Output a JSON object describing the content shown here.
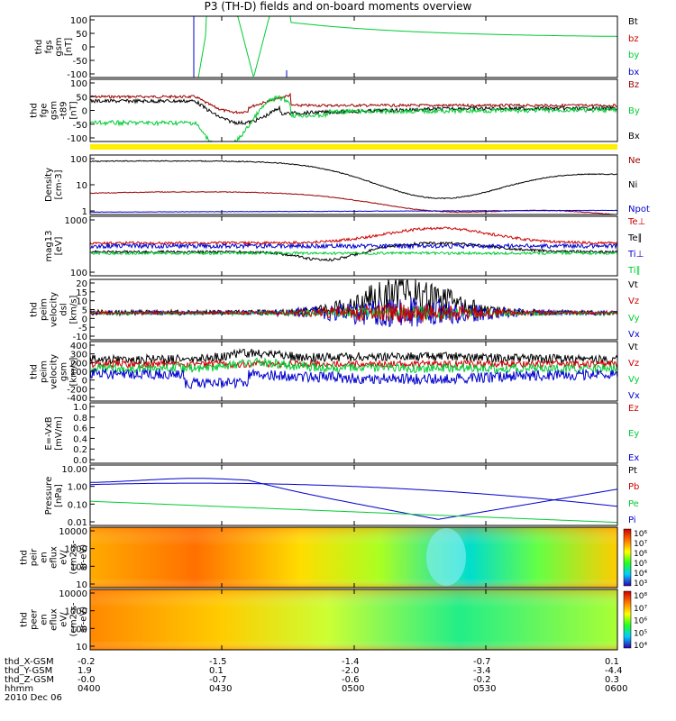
{
  "title": "P3 (TH-D) fields and on-board moments overview",
  "colors": {
    "black": "#000000",
    "red": "#cc0000",
    "green": "#00cc33",
    "blue": "#0000cc",
    "maroon": "#990000",
    "yellow": "#ffee00"
  },
  "chart_data": [
    {
      "type": "line",
      "panel": 1,
      "ylabel": "thd\nfgs\ngsm\n[nT]",
      "yticks": [
        "100",
        "50",
        "0",
        "-50",
        "-100"
      ],
      "ylim": [
        -100,
        100
      ],
      "legend": [
        "Bt",
        "bz",
        "by",
        "bx"
      ]
    },
    {
      "type": "line",
      "panel": 2,
      "ylabel": "thd\nfge\ngsm\n-t89\n[nT]",
      "yticks": [
        "100",
        "50",
        "0",
        "-50",
        "-100"
      ],
      "ylim": [
        -130,
        100
      ],
      "legend": [
        "Bz",
        "By",
        "Bx"
      ]
    },
    {
      "type": "line",
      "panel": 3,
      "ylabel": "Density\n[cm-3]",
      "yticks": [
        "100",
        "10",
        "1"
      ],
      "scale": "log",
      "legend": [
        "Ne",
        "Ni",
        "Npot"
      ]
    },
    {
      "type": "line",
      "panel": 4,
      "ylabel": "mag13\n[eV]",
      "yticks": [
        "1000",
        "100"
      ],
      "scale": "log",
      "legend": [
        "Te⊥",
        "Te∥",
        "Ti⊥",
        "Ti∥"
      ]
    },
    {
      "type": "line",
      "panel": 5,
      "ylabel": "thd\npeim\nvelocity\ndsl\n[km/s]",
      "yticks": [
        "20",
        "15",
        "10",
        "5",
        "0",
        "-5",
        "-10"
      ],
      "ylim": [
        -12,
        20
      ],
      "legend": [
        "Vt",
        "Vz",
        "Vy",
        "Vx"
      ]
    },
    {
      "type": "line",
      "panel": 6,
      "ylabel": "thd\npeim\nvelocity\ngsm\n[km/s]",
      "yticks": [
        "400",
        "300",
        "200",
        "100",
        "0",
        "-200",
        "-400"
      ],
      "ylim": [
        -400,
        400
      ],
      "legend": [
        "Vt",
        "Vz",
        "Vy",
        "Vx"
      ]
    },
    {
      "type": "line",
      "panel": 7,
      "ylabel": "E=-VxB\n[mV/m]",
      "yticks": [
        "1.0",
        "0.8",
        "0.6",
        "0.4",
        "0.2",
        "0.0"
      ],
      "ylim": [
        0,
        1
      ],
      "legend": [
        "Ez",
        "Ey",
        "Ex"
      ]
    },
    {
      "type": "line",
      "panel": 8,
      "ylabel": "Pressure\n[nPa]",
      "yticks": [
        "10.00",
        "1.00",
        "0.10",
        "0.01"
      ],
      "scale": "log",
      "legend": [
        "Pt",
        "Pb",
        "Pe",
        "Pi"
      ]
    },
    {
      "type": "heatmap",
      "panel": 9,
      "ylabel": "thd\npeir\nen\neflux\neV/\n(cm2-s-\nsr-eV)",
      "yticks": [
        "10000",
        "1000",
        "100",
        "10"
      ],
      "colorbar": [
        "10⁶",
        "10⁷",
        "10⁶",
        "10⁵",
        "10⁴",
        "10³"
      ]
    },
    {
      "type": "heatmap",
      "panel": 10,
      "ylabel": "thd\npeer\nen\neflux\neV/\n(cm2-s-\nsr-eV)",
      "yticks": [
        "10000",
        "1000",
        "100",
        "10"
      ],
      "colorbar": [
        "10⁸",
        "10⁷",
        "10⁶",
        "10⁵",
        "10⁴"
      ]
    }
  ],
  "xaxis": {
    "row_labels": [
      "thd_X-GSM",
      "thd_Y-GSM",
      "thd_Z-GSM",
      "hhmm",
      "2010 Dec 06"
    ],
    "columns": [
      [
        "-0.2",
        "1.9",
        "-0.0",
        "0400"
      ],
      [
        "-1.5",
        "0.1",
        "-0.7",
        "0430"
      ],
      [
        "-1.4",
        "-2.0",
        "-0.6",
        "0500"
      ],
      [
        "-0.7",
        "-3.4",
        "-0.2",
        "0530"
      ],
      [
        "0.1",
        "-4.4",
        "0.3",
        "0600"
      ]
    ]
  }
}
